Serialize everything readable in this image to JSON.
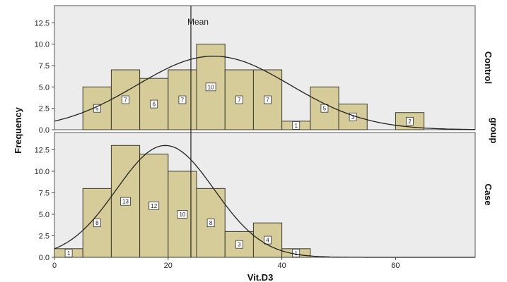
{
  "chart_data": {
    "type": "bar",
    "xlabel": "Vit.D3",
    "ylabel": "Frequency",
    "group_label": "group",
    "mean_label": "Mean",
    "xlim": [
      0,
      74
    ],
    "x_ticks": [
      0,
      20,
      40,
      60
    ],
    "ylim": [
      0,
      14.5
    ],
    "y_ticks": [
      "0.0",
      "2.5",
      "5.0",
      "7.5",
      "10.0",
      "12.5"
    ],
    "bin_width": 5,
    "mean_line_x": 24,
    "bar_color": "#d6cc9a",
    "panel_background": "#ececec",
    "panels": [
      {
        "name": "Control",
        "bin_starts": [
          5,
          10,
          15,
          20,
          25,
          30,
          35,
          40,
          45,
          50,
          60
        ],
        "values": [
          5,
          7,
          6,
          7,
          10,
          7,
          7,
          1,
          5,
          3,
          2
        ],
        "bar_labels": [
          "5",
          "7",
          "6",
          "7",
          "10",
          "7",
          "7",
          "1",
          "5",
          "3",
          "2"
        ],
        "curve": {
          "mean": 28,
          "sd": 13.5,
          "peak": 8.6
        }
      },
      {
        "name": "Case",
        "bin_starts": [
          0,
          5,
          10,
          15,
          20,
          25,
          30,
          35,
          40
        ],
        "values": [
          1,
          8,
          13,
          12,
          10,
          8,
          3,
          4,
          1
        ],
        "bar_labels": [
          "1",
          "8",
          "13",
          "12",
          "10",
          "8",
          "3",
          "4",
          "1"
        ],
        "curve": {
          "mean": 19.5,
          "sd": 8.6,
          "peak": 13.0
        }
      }
    ]
  }
}
